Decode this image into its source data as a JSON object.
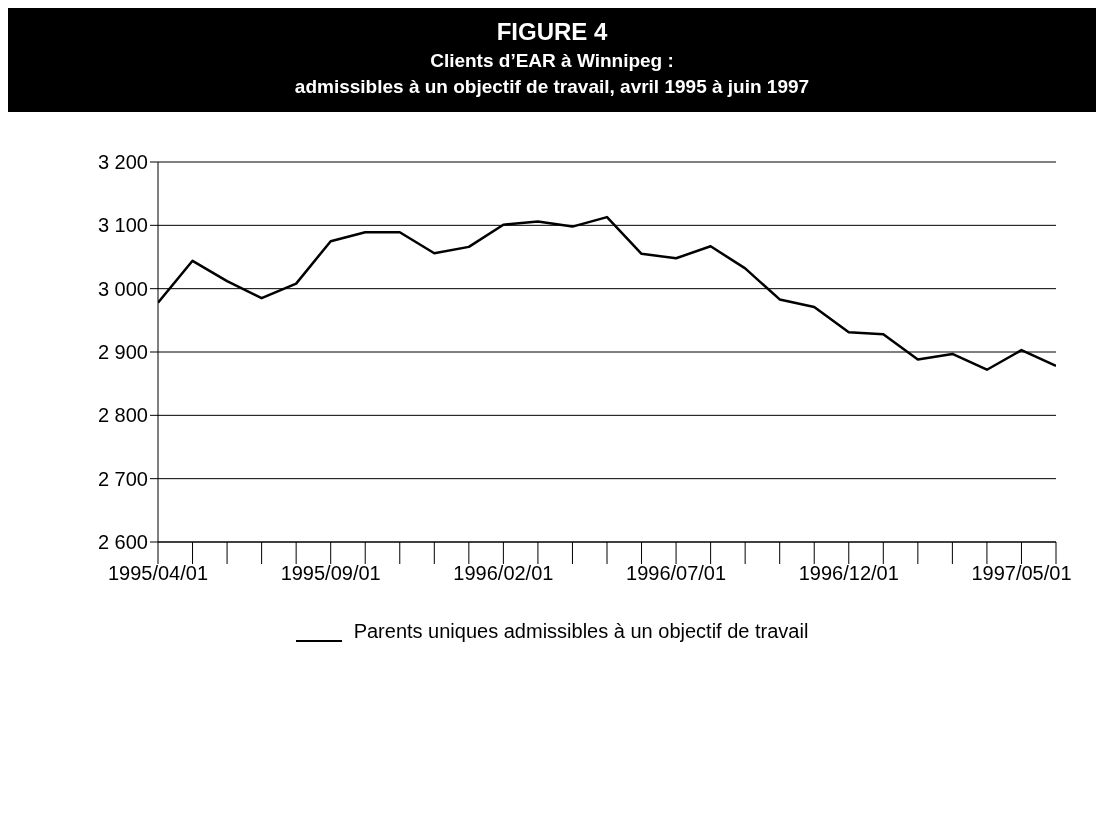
{
  "chart_data": {
    "type": "line",
    "title": "FIGURE 4",
    "subtitle": "Clients d’EAR à Winnipeg :\nadmissibles à un objectif de travail, avril 1995 à juin 1997",
    "categories": [
      "1995/04/01",
      null,
      null,
      null,
      null,
      "1995/09/01",
      null,
      null,
      null,
      null,
      "1996/02/01",
      null,
      null,
      null,
      null,
      "1996/07/01",
      null,
      null,
      null,
      null,
      "1996/12/01",
      null,
      null,
      null,
      null,
      "1997/05/01",
      null
    ],
    "series": [
      {
        "name": "Parents uniques admissibles à un objectif de travail",
        "color": "#000000",
        "values": [
          2978,
          3044,
          3012,
          2985,
          3008,
          3075,
          3089,
          3089,
          3056,
          3066,
          3101,
          3106,
          3098,
          3113,
          3055,
          3048,
          3067,
          3032,
          2983,
          2971,
          2931,
          2928,
          2888,
          2897,
          2872,
          2903,
          2878
        ]
      }
    ],
    "ylim": [
      2600,
      3200
    ],
    "yticks": [
      {
        "value": 2600,
        "label": "2 600"
      },
      {
        "value": 2700,
        "label": "2 700"
      },
      {
        "value": 2800,
        "label": "2 800"
      },
      {
        "value": 2900,
        "label": "2 900"
      },
      {
        "value": 3000,
        "label": "3 000"
      },
      {
        "value": 3100,
        "label": "3 100"
      },
      {
        "value": 3200,
        "label": "3 200"
      }
    ],
    "grid": "y",
    "legend": "bottom",
    "marker": "none",
    "line_style": "solid"
  }
}
